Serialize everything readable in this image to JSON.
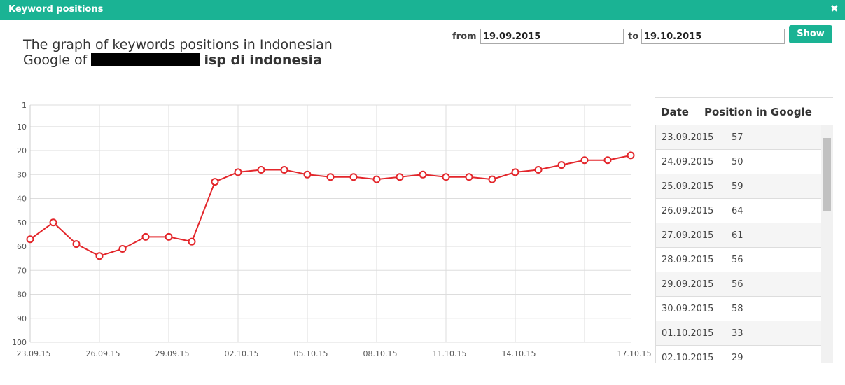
{
  "header": {
    "title": "Keyword positions",
    "close": "✖"
  },
  "form": {
    "from_label": "from",
    "from_value": "19.09.2015",
    "to_label": "to",
    "to_value": "19.10.2015",
    "button": "Show"
  },
  "title": {
    "text": "The graph of keywords positions in Indonesian Google of",
    "keyword": "isp di indonesia"
  },
  "chart_data": {
    "type": "line",
    "categories": [
      "23.09.15",
      null,
      null,
      "26.09.15",
      null,
      null,
      "29.09.15",
      null,
      null,
      "02.10.15",
      null,
      null,
      "05.10.15",
      null,
      null,
      "08.10.15",
      null,
      null,
      "11.10.15",
      null,
      null,
      "14.10.15",
      null,
      null,
      null,
      null,
      "17.10.15"
    ],
    "series": [
      {
        "name": "Position in Google",
        "color": "#e3262b",
        "values": [
          57,
          50,
          59,
          64,
          61,
          56,
          56,
          58,
          33,
          29,
          28,
          28,
          30,
          31,
          31,
          32,
          31,
          30,
          31,
          31,
          32,
          29,
          28,
          26,
          24,
          24,
          22
        ]
      }
    ],
    "ylim": [
      1,
      100
    ],
    "reversed": true,
    "yticks": [
      1,
      10,
      20,
      30,
      40,
      50,
      60,
      70,
      80,
      90,
      100
    ],
    "grid": true
  },
  "table": {
    "columns": [
      "Date",
      "Position in Google"
    ],
    "rows": [
      [
        "23.09.2015",
        "57"
      ],
      [
        "24.09.2015",
        "50"
      ],
      [
        "25.09.2015",
        "59"
      ],
      [
        "26.09.2015",
        "64"
      ],
      [
        "27.09.2015",
        "61"
      ],
      [
        "28.09.2015",
        "56"
      ],
      [
        "29.09.2015",
        "56"
      ],
      [
        "30.09.2015",
        "58"
      ],
      [
        "01.10.2015",
        "33"
      ],
      [
        "02.10.2015",
        "29"
      ]
    ]
  }
}
